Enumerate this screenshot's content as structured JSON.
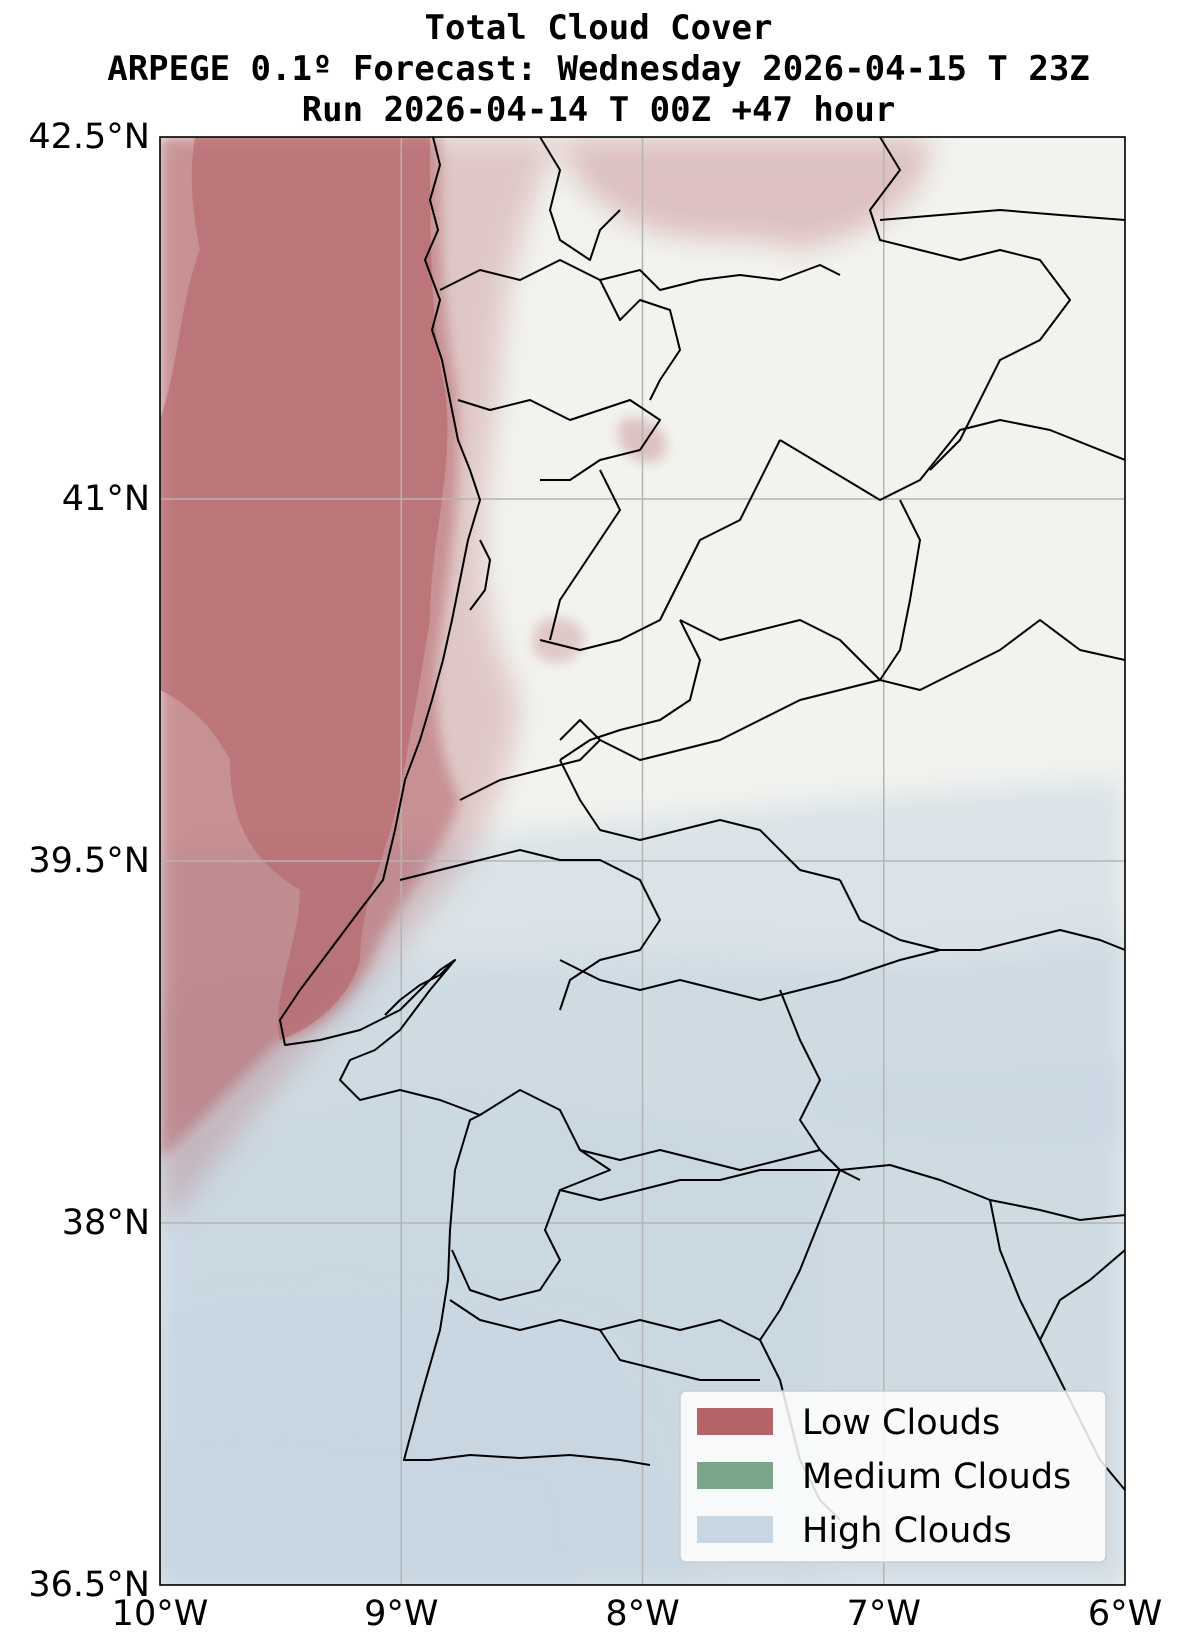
{
  "title": {
    "line1": "Total Cloud Cover",
    "line2": "ARPEGE 0.1º Forecast: Wednesday 2026-04-15 T 23Z",
    "line3": "Run 2026-04-14 T 00Z +47 hour"
  },
  "map": {
    "region": "Portugal",
    "lon_range": [
      -10,
      -6
    ],
    "lat_range": [
      36.5,
      42.5
    ],
    "grid": true,
    "colors": {
      "land": "#f2f3ef",
      "low_clouds": "#b5656a",
      "medium_clouds": "#7aa589",
      "high_clouds": "#c7d6e2",
      "gridline": "#b4b4b4",
      "border": "#000000"
    }
  },
  "axes": {
    "x_ticks": [
      {
        "value": -10,
        "label": "10°W"
      },
      {
        "value": -9,
        "label": "9°W"
      },
      {
        "value": -8,
        "label": "8°W"
      },
      {
        "value": -7,
        "label": "7°W"
      },
      {
        "value": -6,
        "label": "6°W"
      }
    ],
    "y_ticks": [
      {
        "value": 42.5,
        "label": "42.5°N"
      },
      {
        "value": 41,
        "label": "41°N"
      },
      {
        "value": 39.5,
        "label": "39.5°N"
      },
      {
        "value": 38,
        "label": "38°N"
      },
      {
        "value": 36.5,
        "label": "36.5°N"
      }
    ]
  },
  "legend": {
    "placement": "bottom-right",
    "items": [
      {
        "label": "Low Clouds",
        "color": "#b5656a"
      },
      {
        "label": "Medium Clouds",
        "color": "#7aa589"
      },
      {
        "label": "High Clouds",
        "color": "#c7d6e2"
      }
    ]
  }
}
